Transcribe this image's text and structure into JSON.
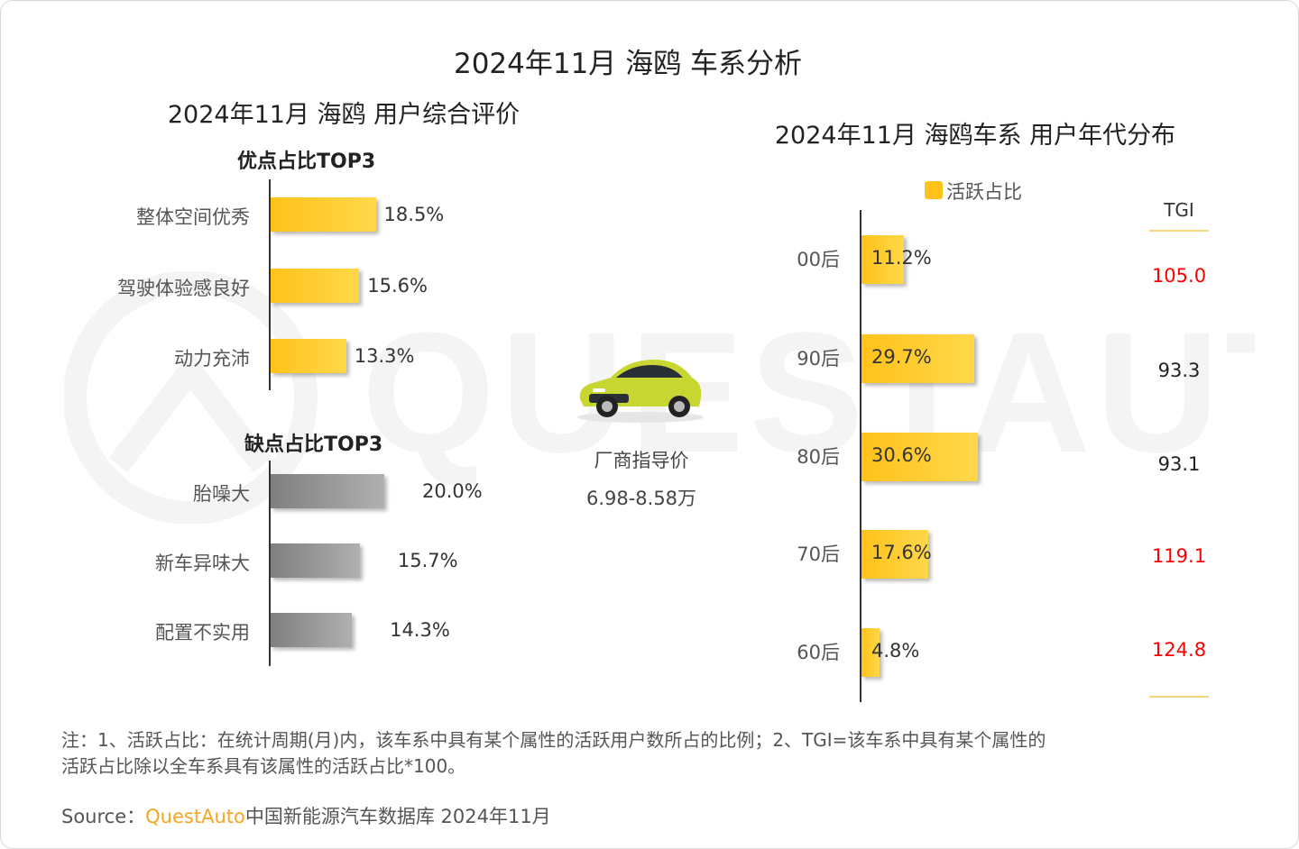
{
  "title": "2024年11月 海鸥 车系分析",
  "left_title": "2024年11月 海鸥 用户综合评价",
  "right_title": "2024年11月 海鸥车系 用户年代分布",
  "price": {
    "label": "厂商指导价",
    "value": "6.98-8.58万"
  },
  "note_lines": [
    "注：1、活跃占比：在统计周期(月)内，该车系中具有某个属性的活跃用户数所占的比例；2、TGI=该车系中具有某个属性的",
    "活跃占比除以全车系具有该属性的活跃占比*100。"
  ],
  "source": {
    "prefix": "Source：",
    "brand": "QuestAuto",
    "text": "中国新能源汽车数据库 2024年11月"
  },
  "watermark_text": "QUESTAUTO",
  "colors": {
    "accent": "#ffc21a",
    "negative_bar": "#9a9a9a",
    "tgi_high": "#ff0000",
    "tgi_normal": "#222222"
  },
  "chart_data": [
    {
      "type": "bar",
      "orientation": "horizontal",
      "title": "优点占比TOP3",
      "categories": [
        "整体空间优秀",
        "驾驶体验感良好",
        "动力充沛"
      ],
      "values": [
        18.5,
        15.6,
        13.3
      ],
      "labels": [
        "18.5%",
        "15.6%",
        "13.3%"
      ]
    },
    {
      "type": "bar",
      "orientation": "horizontal",
      "title": "缺点占比TOP3",
      "categories": [
        "胎噪大",
        "新车异味大",
        "配置不实用"
      ],
      "values": [
        20.0,
        15.7,
        14.3
      ],
      "labels": [
        "20.0%",
        "15.7%",
        "14.3%"
      ]
    },
    {
      "type": "bar",
      "orientation": "horizontal",
      "legend": [
        "活跃占比"
      ],
      "categories": [
        "00后",
        "90后",
        "80后",
        "70后",
        "60后"
      ],
      "values": [
        11.2,
        29.7,
        30.6,
        17.6,
        4.8
      ],
      "labels": [
        "11.2%",
        "29.7%",
        "30.6%",
        "17.6%",
        "4.8%"
      ],
      "tgi_header": "TGI",
      "tgi": [
        "105.0",
        "93.3",
        "93.1",
        "119.1",
        "124.8"
      ],
      "tgi_highlight": [
        true,
        false,
        false,
        true,
        true
      ]
    }
  ]
}
